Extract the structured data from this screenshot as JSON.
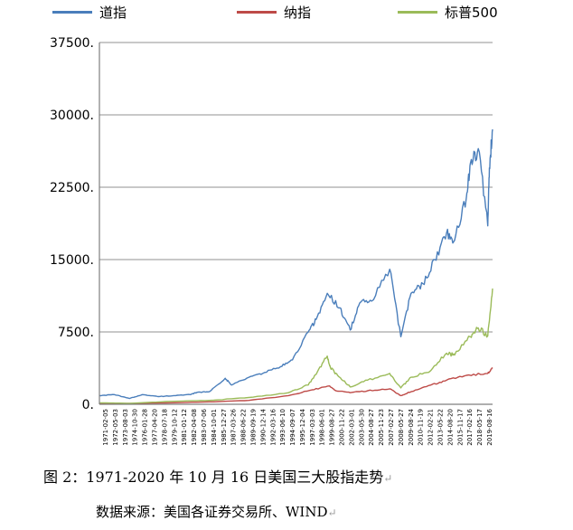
{
  "chart_data": {
    "type": "line",
    "title": "",
    "xlabel": "",
    "ylabel": "",
    "ylim": [
      0,
      37500
    ],
    "yticks": [
      "37500.",
      "30000.",
      "22500.",
      "15000.",
      "7500.",
      "0."
    ],
    "grid": true,
    "legend_position": "top",
    "x_tick_labels": [
      "1971-02-05",
      "1972-05-03",
      "1973-08-03",
      "1974-10-30",
      "1976-01-28",
      "1977-04-20",
      "1978-07-18",
      "1979-10-12",
      "1981-01-12",
      "1982-04-08",
      "1983-07-06",
      "1984-10-01",
      "1985-12-27",
      "1987-03-26",
      "1988-06-22",
      "1989-09-19",
      "1990-12-14",
      "1992-03-16",
      "1993-06-10",
      "1994-09-07",
      "1995-12-04",
      "1997-03-03",
      "1998-06-01",
      "1999-08-27",
      "2000-11-22",
      "2002-03-01",
      "2003-05-30",
      "2004-08-27",
      "2005-11-23",
      "2007-02-27",
      "2008-05-27",
      "2009-08-24",
      "2010-11-19",
      "2012-02-21",
      "2013-05-22",
      "2014-08-20",
      "2015-11-17",
      "2017-02-16",
      "2018-05-17",
      "2019-08-16"
    ],
    "series": [
      {
        "name": "道指",
        "color": "#4a7ebb",
        "x": [
          1971.1,
          1973.0,
          1974.9,
          1976.5,
          1978.5,
          1980.5,
          1982.6,
          1983.5,
          1985.0,
          1987.0,
          1987.8,
          1990.0,
          1992.0,
          1994.0,
          1995.5,
          1997.5,
          1998.5,
          1999.9,
          2001.5,
          2002.8,
          2004.0,
          2005.5,
          2007.8,
          2009.2,
          2010.5,
          2012.0,
          2013.5,
          2015.0,
          2016.0,
          2017.5,
          2018.0,
          2019.0,
          2020.2,
          2020.4,
          2020.8
        ],
        "y": [
          900,
          1000,
          600,
          1000,
          800,
          900,
          1000,
          1250,
          1300,
          2700,
          2000,
          2800,
          3300,
          3900,
          4600,
          7500,
          8800,
          11500,
          10000,
          7700,
          10500,
          10700,
          14000,
          7000,
          11500,
          12500,
          15000,
          17800,
          17000,
          21500,
          25000,
          26500,
          18500,
          24500,
          28500
        ]
      },
      {
        "name": "纳指",
        "color": "#be4b48",
        "x": [
          1971.1,
          1975.0,
          1980.0,
          1985.0,
          1990.0,
          1995.0,
          1998.0,
          2000.2,
          2001.0,
          2002.8,
          2005.0,
          2007.8,
          2009.2,
          2010.5,
          2013.0,
          2015.0,
          2017.5,
          2020.2,
          2020.8
        ],
        "y": [
          100,
          80,
          150,
          250,
          400,
          900,
          1500,
          1900,
          1400,
          1200,
          1400,
          1600,
          900,
          1300,
          2000,
          2500,
          3000,
          3200,
          3700
        ]
      },
      {
        "name": "标普500",
        "color": "#9bbb59",
        "x": [
          1971.1,
          1975.0,
          1980.0,
          1985.0,
          1990.0,
          1995.0,
          1997.5,
          1998.5,
          1999.9,
          2000.3,
          2001.2,
          2002.8,
          2005.0,
          2007.8,
          2009.2,
          2010.5,
          2013.0,
          2015.0,
          2016.0,
          2018.0,
          2019.0,
          2020.2,
          2020.8
        ],
        "y": [
          150,
          100,
          300,
          400,
          700,
          1200,
          2000,
          3100,
          5000,
          3800,
          3000,
          1800,
          2500,
          3200,
          1700,
          2800,
          3500,
          5300,
          5100,
          7000,
          7900,
          7100,
          12000
        ]
      }
    ]
  },
  "caption": "图 2：1971-2020 年 10 月 16 日美国三大股指走势",
  "source": "数据来源：美国各证券交易所、WIND",
  "paragraph_mark": "↵"
}
